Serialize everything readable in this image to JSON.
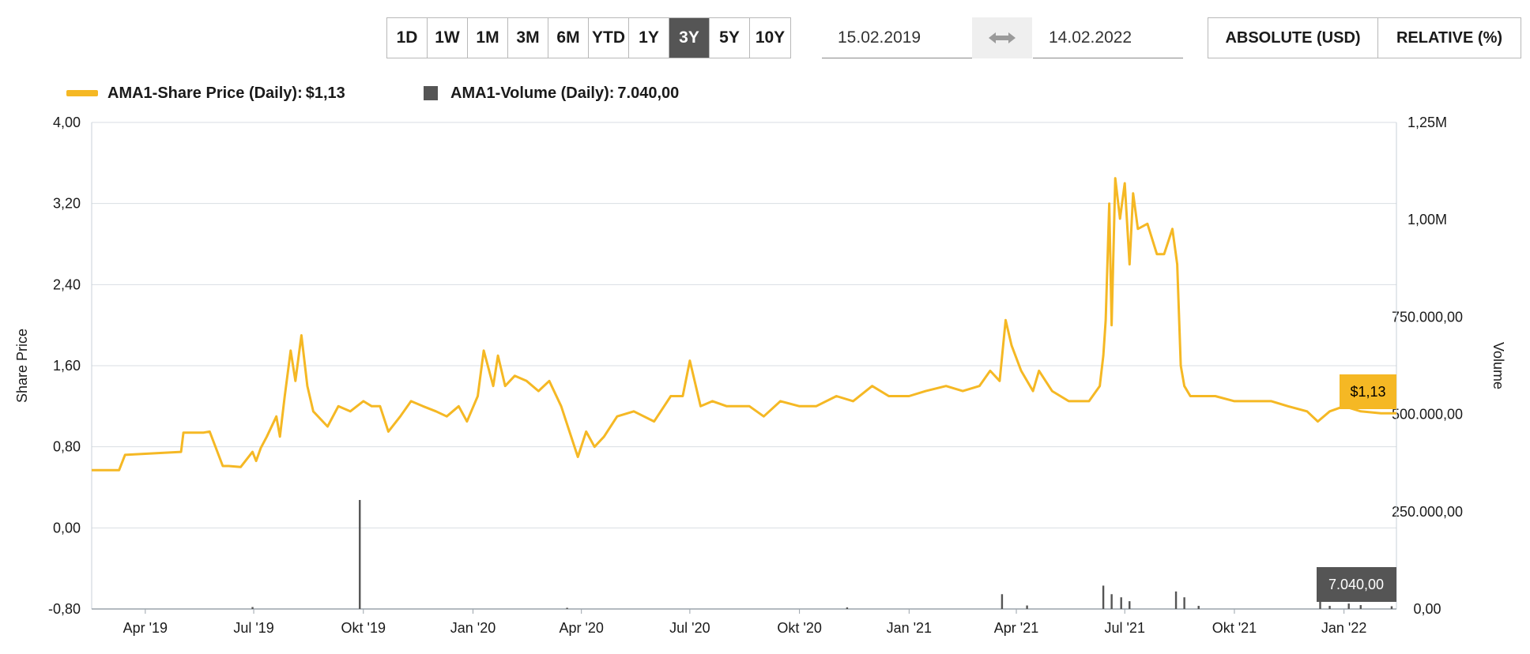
{
  "toolbar": {
    "ranges": [
      {
        "label": "1D",
        "active": false
      },
      {
        "label": "1W",
        "active": false
      },
      {
        "label": "1M",
        "active": false
      },
      {
        "label": "3M",
        "active": false
      },
      {
        "label": "6M",
        "active": false
      },
      {
        "label": "YTD",
        "active": false
      },
      {
        "label": "1Y",
        "active": false
      },
      {
        "label": "3Y",
        "active": true
      },
      {
        "label": "5Y",
        "active": false
      },
      {
        "label": "10Y",
        "active": false
      }
    ],
    "date_from": "15.02.2019",
    "date_to": "14.02.2022",
    "swap_icon": "double-arrow-icon",
    "mode_absolute": "ABSOLUTE (USD)",
    "mode_relative": "RELATIVE (%)"
  },
  "legend": {
    "price": "AMA1-Share Price (Daily):",
    "price_value": "$1,13",
    "volume": "AMA1-Volume (Daily):",
    "volume_value": "7.040,00"
  },
  "colors": {
    "price_line": "#f5b824",
    "volume_bar": "#555555",
    "grid": "#d9dee3",
    "active_range": "#555555"
  },
  "chart_data": {
    "type": "line",
    "xlabel": "",
    "ylabel": "Share Price",
    "y2label": "Volume",
    "ylim": [
      -0.8,
      4.0
    ],
    "y2lim": [
      0,
      1250000
    ],
    "xlim": [
      "2019-02-15",
      "2022-02-14"
    ],
    "y_ticks": [
      "4,00",
      "3,20",
      "2,40",
      "1,60",
      "0,80",
      "0,00",
      "-0,80"
    ],
    "y2_ticks": [
      "1,25M",
      "1,00M",
      "750.000,00",
      "500.000,00",
      "250.000,00",
      "0,00"
    ],
    "x_ticks": [
      {
        "date": "2019-04-01",
        "label": "Apr '19"
      },
      {
        "date": "2019-07-01",
        "label": "Jul '19"
      },
      {
        "date": "2019-10-01",
        "label": "Okt '19"
      },
      {
        "date": "2020-01-01",
        "label": "Jan '20"
      },
      {
        "date": "2020-04-01",
        "label": "Apr '20"
      },
      {
        "date": "2020-07-01",
        "label": "Jul '20"
      },
      {
        "date": "2020-10-01",
        "label": "Okt '20"
      },
      {
        "date": "2021-01-01",
        "label": "Jan '21"
      },
      {
        "date": "2021-04-01",
        "label": "Apr '21"
      },
      {
        "date": "2021-07-01",
        "label": "Jul '21"
      },
      {
        "date": "2021-10-01",
        "label": "Okt '21"
      },
      {
        "date": "2022-01-01",
        "label": "Jan '22"
      }
    ],
    "grid": true,
    "series": [
      {
        "name": "AMA1-Share Price (Daily)",
        "axis": "left",
        "type": "line",
        "x": [
          "2019-02-15",
          "2019-03-10",
          "2019-03-15",
          "2019-04-15",
          "2019-05-01",
          "2019-05-03",
          "2019-05-20",
          "2019-05-25",
          "2019-06-05",
          "2019-06-10",
          "2019-06-20",
          "2019-06-30",
          "2019-07-03",
          "2019-07-07",
          "2019-07-12",
          "2019-07-20",
          "2019-07-23",
          "2019-07-27",
          "2019-08-01",
          "2019-08-05",
          "2019-08-10",
          "2019-08-15",
          "2019-08-20",
          "2019-09-01",
          "2019-09-10",
          "2019-09-20",
          "2019-10-01",
          "2019-10-08",
          "2019-10-15",
          "2019-10-22",
          "2019-11-01",
          "2019-11-10",
          "2019-11-20",
          "2019-12-01",
          "2019-12-10",
          "2019-12-20",
          "2019-12-27",
          "2020-01-05",
          "2020-01-10",
          "2020-01-18",
          "2020-01-22",
          "2020-01-28",
          "2020-02-05",
          "2020-02-15",
          "2020-02-25",
          "2020-03-05",
          "2020-03-15",
          "2020-03-22",
          "2020-03-29",
          "2020-04-05",
          "2020-04-12",
          "2020-04-20",
          "2020-05-01",
          "2020-05-15",
          "2020-06-01",
          "2020-06-15",
          "2020-06-25",
          "2020-07-01",
          "2020-07-10",
          "2020-07-20",
          "2020-08-01",
          "2020-08-20",
          "2020-09-01",
          "2020-09-15",
          "2020-10-01",
          "2020-10-15",
          "2020-11-01",
          "2020-11-15",
          "2020-12-01",
          "2020-12-15",
          "2021-01-01",
          "2021-01-15",
          "2021-02-01",
          "2021-02-15",
          "2021-03-01",
          "2021-03-10",
          "2021-03-18",
          "2021-03-23",
          "2021-03-28",
          "2021-04-05",
          "2021-04-15",
          "2021-04-20",
          "2021-05-01",
          "2021-05-15",
          "2021-06-01",
          "2021-06-10",
          "2021-06-13",
          "2021-06-15",
          "2021-06-18",
          "2021-06-20",
          "2021-06-23",
          "2021-06-27",
          "2021-07-01",
          "2021-07-05",
          "2021-07-08",
          "2021-07-12",
          "2021-07-20",
          "2021-07-28",
          "2021-08-03",
          "2021-08-10",
          "2021-08-14",
          "2021-08-17",
          "2021-08-20",
          "2021-08-25",
          "2021-09-01",
          "2021-09-15",
          "2021-10-01",
          "2021-10-15",
          "2021-11-01",
          "2021-11-15",
          "2021-12-01",
          "2021-12-10",
          "2021-12-20",
          "2022-01-01",
          "2022-01-15",
          "2022-02-01",
          "2022-02-14"
        ],
        "values": [
          0.57,
          0.57,
          0.72,
          0.74,
          0.75,
          0.94,
          0.94,
          0.95,
          0.61,
          0.61,
          0.6,
          0.75,
          0.66,
          0.79,
          0.9,
          1.1,
          0.9,
          1.3,
          1.75,
          1.45,
          1.9,
          1.4,
          1.15,
          1.0,
          1.2,
          1.15,
          1.25,
          1.2,
          1.2,
          0.95,
          1.1,
          1.25,
          1.2,
          1.15,
          1.1,
          1.2,
          1.05,
          1.3,
          1.75,
          1.4,
          1.7,
          1.4,
          1.5,
          1.45,
          1.35,
          1.45,
          1.2,
          0.95,
          0.7,
          0.95,
          0.8,
          0.9,
          1.1,
          1.15,
          1.05,
          1.3,
          1.3,
          1.65,
          1.2,
          1.25,
          1.2,
          1.2,
          1.1,
          1.25,
          1.2,
          1.2,
          1.3,
          1.25,
          1.4,
          1.3,
          1.3,
          1.35,
          1.4,
          1.35,
          1.4,
          1.55,
          1.45,
          2.05,
          1.8,
          1.55,
          1.35,
          1.55,
          1.35,
          1.25,
          1.25,
          1.4,
          1.7,
          2.05,
          3.2,
          2.0,
          3.45,
          3.05,
          3.4,
          2.6,
          3.3,
          2.95,
          3.0,
          2.7,
          2.7,
          2.95,
          2.6,
          1.6,
          1.4,
          1.3,
          1.3,
          1.3,
          1.25,
          1.25,
          1.25,
          1.2,
          1.15,
          1.05,
          1.15,
          1.2,
          1.15,
          1.13,
          1.13
        ]
      },
      {
        "name": "AMA1-Volume (Daily)",
        "axis": "right",
        "type": "bar",
        "x": [
          "2019-06-30",
          "2019-09-28",
          "2020-03-20",
          "2020-11-10",
          "2021-03-20",
          "2021-04-10",
          "2021-06-13",
          "2021-06-20",
          "2021-06-28",
          "2021-07-05",
          "2021-08-13",
          "2021-08-20",
          "2021-09-01",
          "2021-12-12",
          "2021-12-20",
          "2022-01-05",
          "2022-01-15",
          "2022-02-10"
        ],
        "values": [
          5000,
          280000,
          3000,
          4000,
          38000,
          9000,
          60000,
          38000,
          30000,
          20000,
          45000,
          30000,
          8000,
          70000,
          8000,
          14000,
          10000,
          7040
        ]
      }
    ],
    "last_price_label": "$1,13",
    "last_volume_label": "7.040,00"
  }
}
